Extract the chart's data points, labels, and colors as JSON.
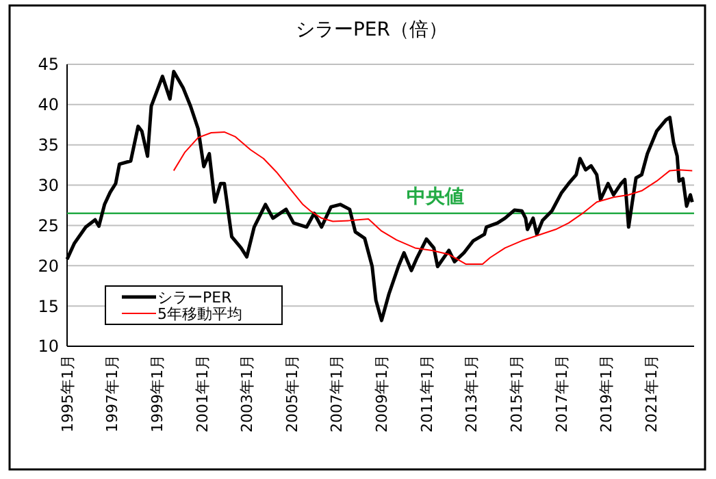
{
  "chart_data": {
    "type": "line",
    "title": "シラーPER（倍）",
    "xlim": [
      "1995-01",
      "2022-12"
    ],
    "xticks": [
      {
        "value": "1995-01",
        "label": "1995年1月"
      },
      {
        "value": "1997-01",
        "label": "1997年1月"
      },
      {
        "value": "1999-01",
        "label": "1999年1月"
      },
      {
        "value": "2001-01",
        "label": "2001年1月"
      },
      {
        "value": "2003-01",
        "label": "2003年1月"
      },
      {
        "value": "2005-01",
        "label": "2005年1月"
      },
      {
        "value": "2007-01",
        "label": "2007年1月"
      },
      {
        "value": "2009-01",
        "label": "2009年1月"
      },
      {
        "value": "2011-01",
        "label": "2011年1月"
      },
      {
        "value": "2013-01",
        "label": "2013年1月"
      },
      {
        "value": "2015-01",
        "label": "2015年1月"
      },
      {
        "value": "2017-01",
        "label": "2017年1月"
      },
      {
        "value": "2019-01",
        "label": "2019年1月"
      },
      {
        "value": "2021-01",
        "label": "2021年1月"
      }
    ],
    "ylim": [
      10,
      45
    ],
    "yticks": [
      10,
      15,
      20,
      25,
      30,
      35,
      40,
      45
    ],
    "grid": "y",
    "legend": "bottom left",
    "series": [
      {
        "name": "シラーPER",
        "color": "#000000",
        "x": [
          "1995-01",
          "1995-05",
          "1995-11",
          "1996-04",
          "1996-06",
          "1996-09",
          "1996-12",
          "1997-03",
          "1997-05",
          "1997-11",
          "1998-03",
          "1998-05",
          "1998-08",
          "1998-10",
          "1999-04",
          "1999-08",
          "1999-10",
          "2000-03",
          "2000-07",
          "2000-11",
          "2001-02",
          "2001-05",
          "2001-08",
          "2001-11",
          "2002-01",
          "2002-05",
          "2002-10",
          "2003-01",
          "2003-05",
          "2003-11",
          "2004-03",
          "2004-10",
          "2005-02",
          "2005-09",
          "2006-01",
          "2006-05",
          "2006-10",
          "2007-03",
          "2007-08",
          "2007-11",
          "2008-04",
          "2008-08",
          "2008-10",
          "2009-01",
          "2009-05",
          "2009-10",
          "2010-01",
          "2010-05",
          "2010-08",
          "2011-01",
          "2011-05",
          "2011-07",
          "2012-01",
          "2012-04",
          "2012-09",
          "2013-02",
          "2013-08",
          "2013-09",
          "2014-03",
          "2014-07",
          "2014-12",
          "2015-04",
          "2015-06",
          "2015-07",
          "2015-10",
          "2015-12",
          "2016-03",
          "2016-08",
          "2017-01",
          "2017-05",
          "2017-09",
          "2017-11",
          "2018-02",
          "2018-05",
          "2018-08",
          "2018-10",
          "2019-02",
          "2019-05",
          "2019-09",
          "2019-11",
          "2020-01",
          "2020-03",
          "2020-05",
          "2020-08",
          "2020-11",
          "2021-04",
          "2021-09",
          "2021-11",
          "2022-01",
          "2022-03",
          "2022-04",
          "2022-06",
          "2022-08",
          "2022-10",
          "2022-11"
        ],
        "values": [
          20.8,
          22.8,
          24.8,
          25.7,
          24.9,
          27.6,
          29.1,
          30.2,
          32.6,
          33.0,
          37.3,
          36.7,
          33.6,
          39.8,
          43.5,
          40.7,
          44.1,
          42.1,
          39.8,
          37.0,
          32.3,
          33.9,
          27.9,
          30.2,
          30.2,
          23.6,
          22.2,
          21.1,
          24.8,
          27.6,
          25.9,
          27.0,
          25.3,
          24.8,
          26.5,
          24.8,
          27.3,
          27.6,
          27.0,
          24.2,
          23.4,
          19.9,
          15.7,
          13.2,
          16.5,
          19.9,
          21.6,
          19.4,
          21.0,
          23.3,
          22.2,
          19.9,
          21.9,
          20.5,
          21.6,
          23.1,
          23.9,
          24.8,
          25.3,
          25.9,
          26.9,
          26.8,
          25.9,
          24.5,
          25.9,
          23.9,
          25.6,
          26.8,
          29.0,
          30.2,
          31.3,
          33.3,
          31.9,
          32.4,
          31.3,
          28.2,
          30.2,
          28.8,
          30.2,
          30.7,
          24.8,
          27.9,
          30.9,
          31.3,
          33.9,
          36.7,
          38.1,
          38.4,
          35.3,
          33.6,
          30.5,
          30.8,
          27.4,
          28.8,
          27.9
        ]
      },
      {
        "name": "5年移動平均",
        "color": "#ff0000",
        "x": [
          "1999-10",
          "2000-04",
          "2000-11",
          "2001-06",
          "2002-01",
          "2002-07",
          "2003-03",
          "2003-10",
          "2004-05",
          "2005-01",
          "2005-07",
          "2005-11",
          "2006-05",
          "2006-11",
          "2007-08",
          "2008-06",
          "2009-01",
          "2009-09",
          "2010-07",
          "2011-04",
          "2012-01",
          "2012-10",
          "2013-07",
          "2013-11",
          "2014-07",
          "2015-04",
          "2016-01",
          "2016-10",
          "2017-05",
          "2018-01",
          "2018-08",
          "2019-05",
          "2020-01",
          "2020-08",
          "2021-04",
          "2021-11",
          "2022-04",
          "2022-11"
        ],
        "values": [
          31.8,
          34.1,
          35.9,
          36.5,
          36.6,
          36.0,
          34.4,
          33.3,
          31.6,
          29.3,
          27.6,
          26.8,
          25.9,
          25.5,
          25.6,
          25.8,
          24.3,
          23.2,
          22.2,
          21.9,
          21.4,
          20.2,
          20.2,
          21.0,
          22.2,
          23.1,
          23.8,
          24.5,
          25.3,
          26.6,
          27.9,
          28.5,
          28.8,
          29.3,
          30.5,
          31.8,
          31.9,
          31.8
        ]
      }
    ],
    "ref_lines": [
      {
        "axis": "y",
        "value": 26.5,
        "label": "中央値",
        "color": "#22aa44"
      }
    ]
  }
}
